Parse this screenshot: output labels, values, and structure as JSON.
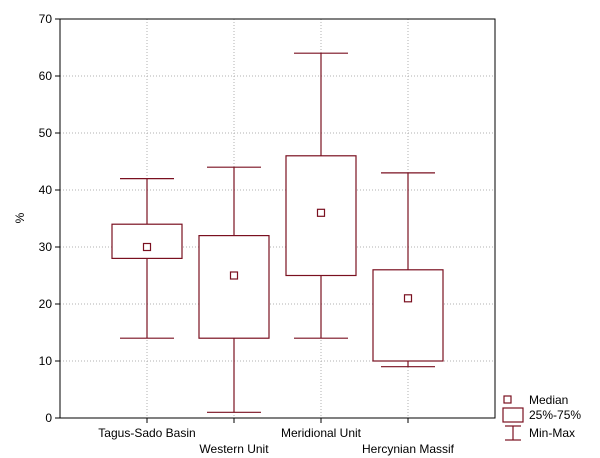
{
  "chart_data": {
    "type": "boxplot",
    "ylabel": "%",
    "ylim": [
      0,
      70
    ],
    "yticks": [
      0,
      10,
      20,
      30,
      40,
      50,
      60,
      70
    ],
    "grid": true,
    "categories": [
      "Tagus-Sado Basin",
      "Western Unit",
      "Meridional Unit",
      "Hercynian Massif"
    ],
    "boxes": [
      {
        "category": "Tagus-Sado Basin",
        "min": 14,
        "q1": 28,
        "median": 30,
        "q3": 34,
        "max": 42
      },
      {
        "category": "Western Unit",
        "min": 1,
        "q1": 14,
        "median": 25,
        "q3": 32,
        "max": 44
      },
      {
        "category": "Meridional Unit",
        "min": 14,
        "q1": 25,
        "median": 36,
        "q3": 46,
        "max": 64
      },
      {
        "category": "Hercynian Massif",
        "min": 9,
        "q1": 10,
        "median": 21,
        "q3": 26,
        "max": 43
      }
    ],
    "color": "#7a1020",
    "legend": {
      "position": "bottom-right",
      "items": [
        {
          "symbol": "median-square",
          "label": "Median"
        },
        {
          "symbol": "box",
          "label": "25%-75%"
        },
        {
          "symbol": "whisker",
          "label": "Min-Max"
        }
      ]
    }
  }
}
